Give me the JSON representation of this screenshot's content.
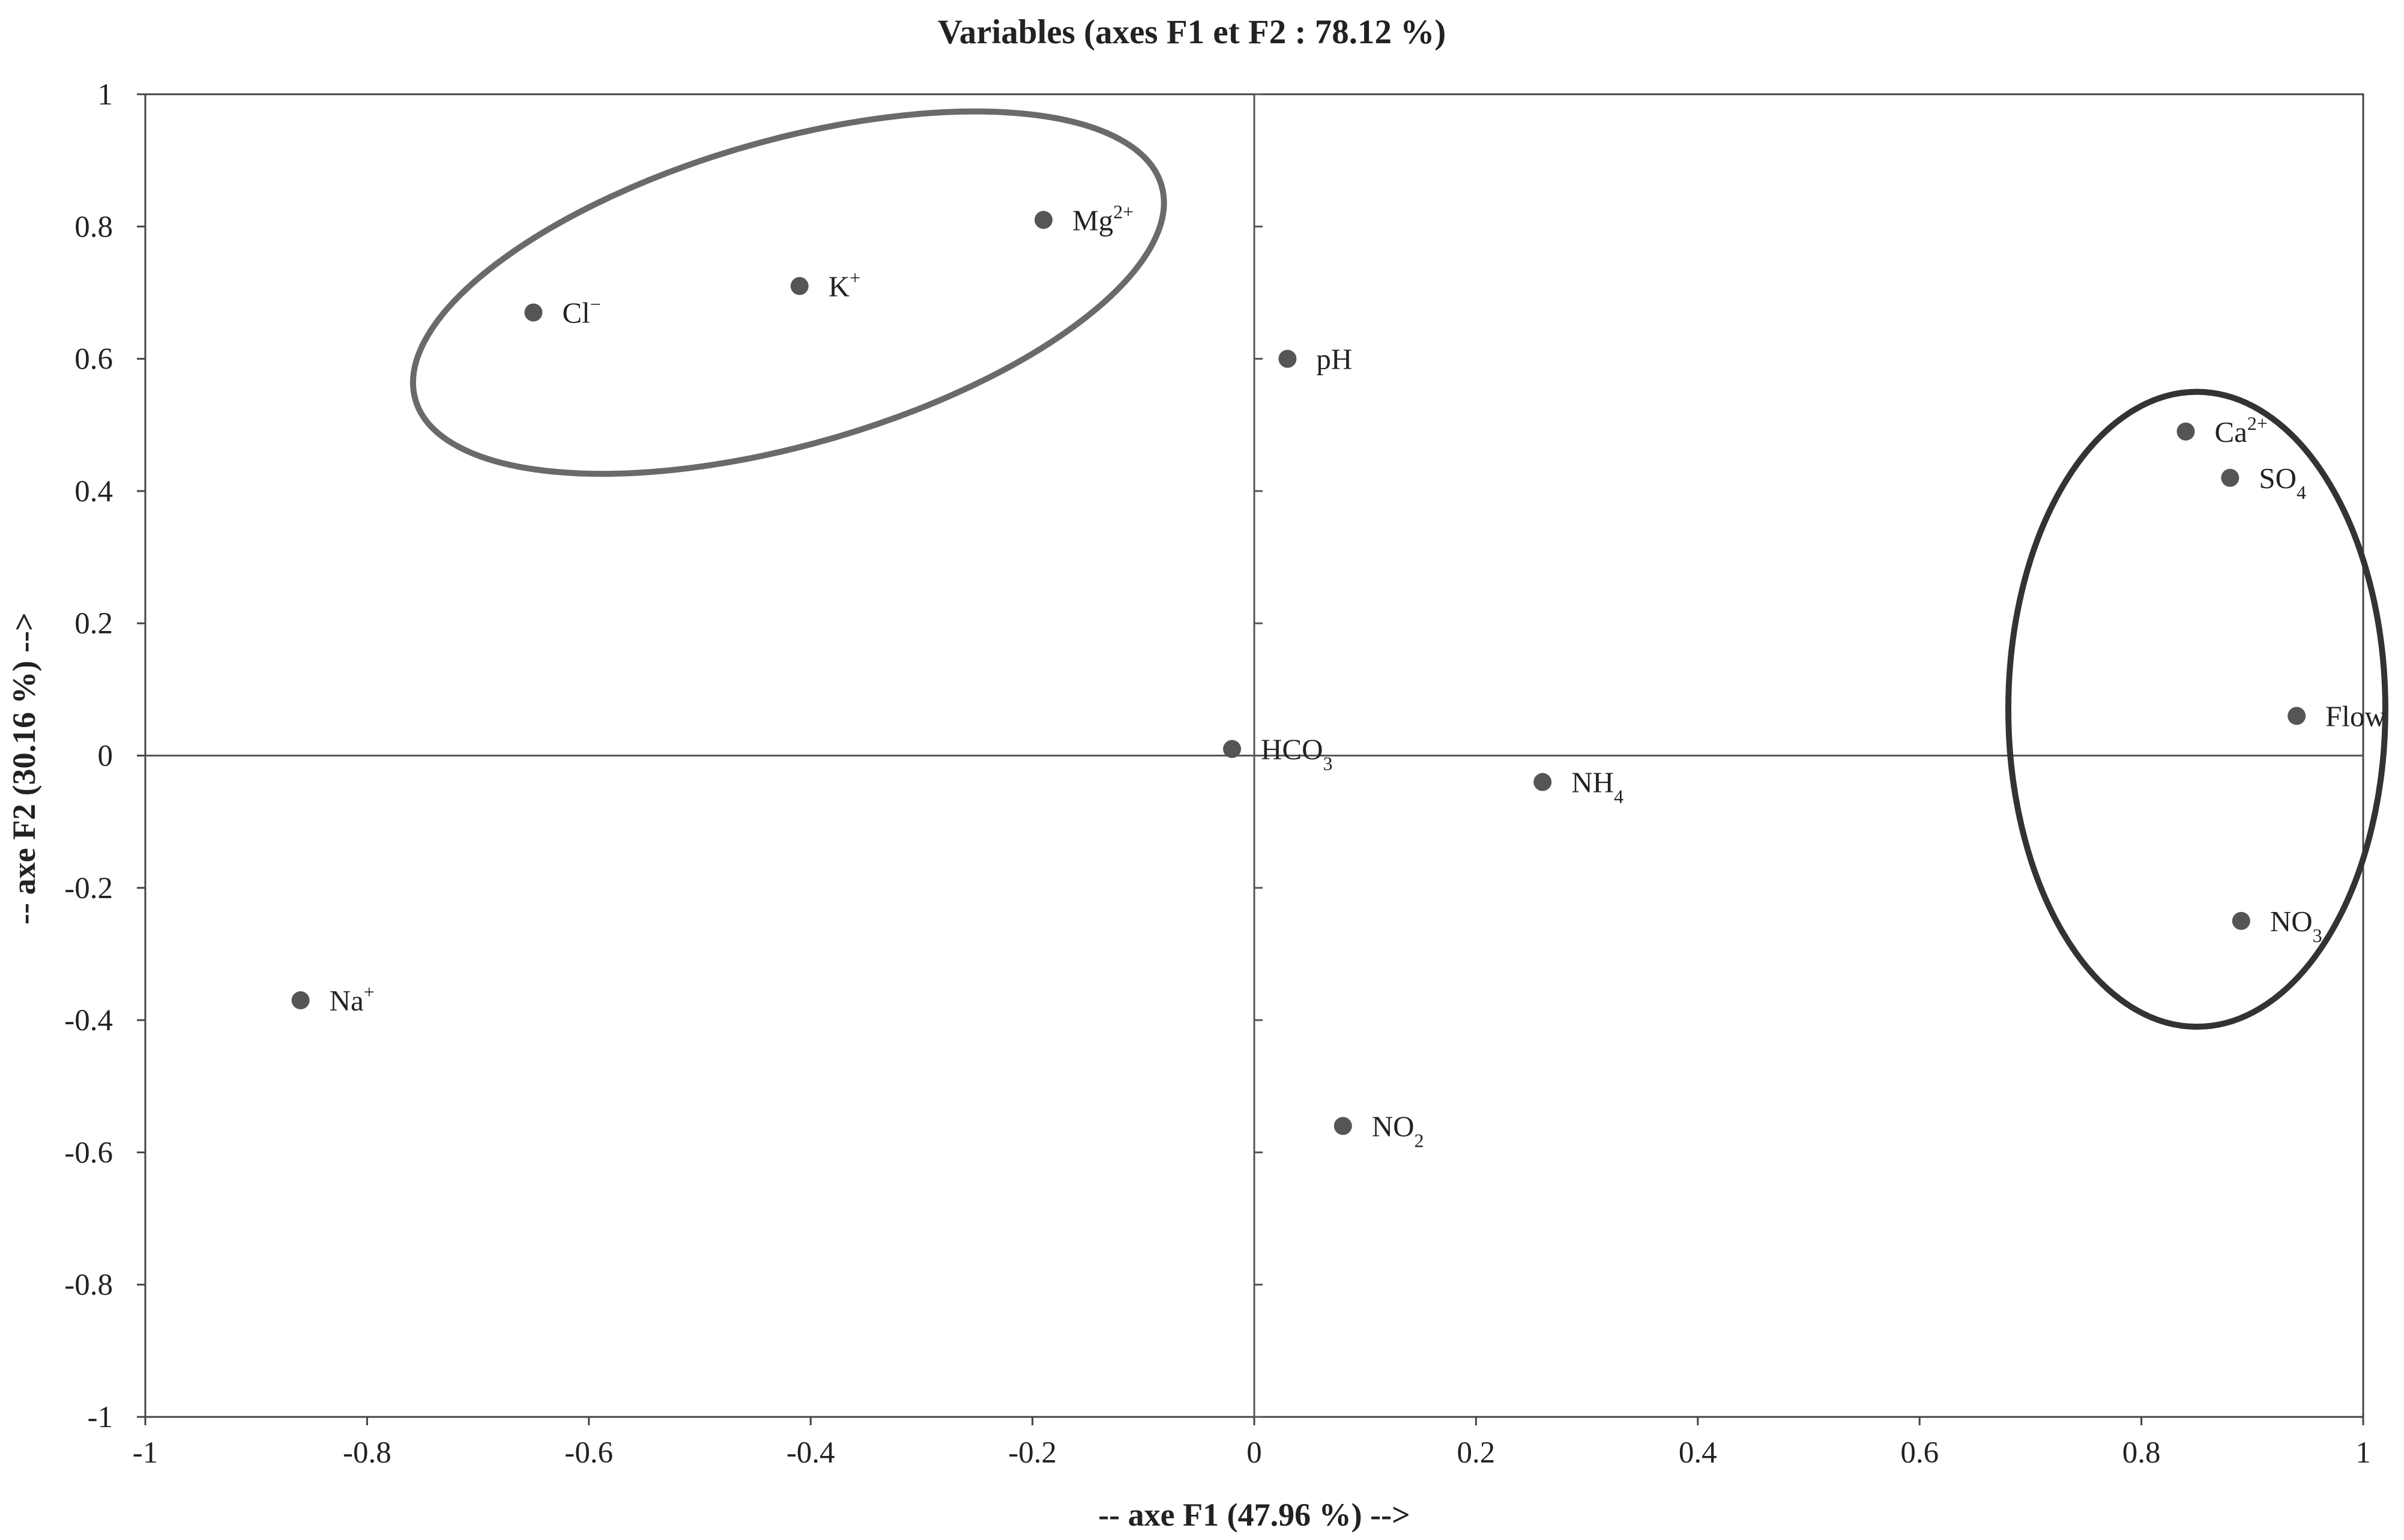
{
  "chart_data": {
    "type": "scatter",
    "title": "Variables (axes F1 et F2 : 78.12 %)",
    "xlabel": "-- axe F1 (47.96 %) -->",
    "ylabel": "-- axe F2 (30.16 %) -->",
    "xlim": [
      -1,
      1
    ],
    "ylim": [
      -1,
      1
    ],
    "x_ticks": [
      "-1",
      "-0.8",
      "-0.6",
      "-0.4",
      "-0.2",
      "0",
      "0.2",
      "0.4",
      "0.6",
      "0.8",
      "1"
    ],
    "y_ticks": [
      "-1",
      "-0.8",
      "-0.6",
      "-0.4",
      "-0.2",
      "0",
      "0.2",
      "0.4",
      "0.6",
      "0.8",
      "1"
    ],
    "grid": false,
    "legend": "none",
    "point_color": "#555555",
    "points": [
      {
        "label": "Mg",
        "sup": "2+",
        "sub": "",
        "x": -0.19,
        "y": 0.81
      },
      {
        "label": "K",
        "sup": "+",
        "sub": "",
        "x": -0.41,
        "y": 0.71
      },
      {
        "label": "Cl",
        "sup": "−",
        "sub": "",
        "x": -0.65,
        "y": 0.67
      },
      {
        "label": "pH",
        "sup": "",
        "sub": "",
        "x": 0.03,
        "y": 0.6
      },
      {
        "label": "Ca",
        "sup": "2+",
        "sub": "",
        "x": 0.84,
        "y": 0.49
      },
      {
        "label": "SO",
        "sup": "",
        "sub": "4",
        "x": 0.88,
        "y": 0.42
      },
      {
        "label": "Flow",
        "sup": "",
        "sub": "",
        "x": 0.94,
        "y": 0.06
      },
      {
        "label": "HCO",
        "sup": "",
        "sub": "3",
        "x": -0.02,
        "y": 0.01
      },
      {
        "label": "NH",
        "sup": "",
        "sub": "4",
        "x": 0.26,
        "y": -0.04
      },
      {
        "label": "NO",
        "sup": "",
        "sub": "3",
        "x": 0.89,
        "y": -0.25
      },
      {
        "label": "Na",
        "sup": "+",
        "sub": "",
        "x": -0.86,
        "y": -0.37
      },
      {
        "label": "NO",
        "sup": "",
        "sub": "2",
        "x": 0.08,
        "y": -0.56
      }
    ],
    "ellipses": [
      {
        "cx": -0.42,
        "cy": 0.7,
        "rx": 0.35,
        "ry": 0.23,
        "rotate": -16,
        "color": "#6a6a6a"
      },
      {
        "cx": 0.85,
        "cy": 0.07,
        "rx": 0.17,
        "ry": 0.48,
        "rotate": 0,
        "color": "#333333"
      }
    ]
  }
}
